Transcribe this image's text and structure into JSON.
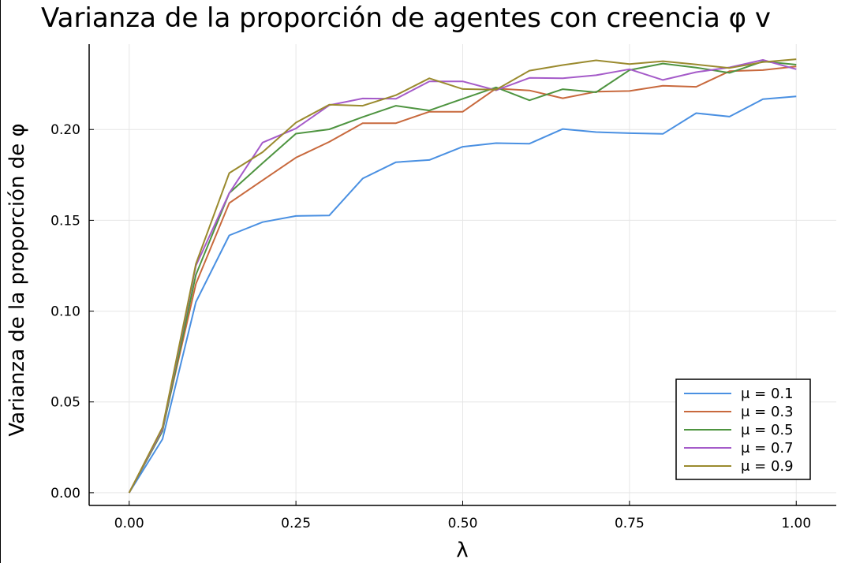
{
  "chart_data": {
    "type": "line",
    "title": "Varianza de la proporción de agentes con creencia φ v",
    "xlabel": "λ",
    "ylabel": "Varianza de la proporción de φ",
    "xlim": [
      -0.06,
      1.06
    ],
    "ylim": [
      -0.007,
      0.247
    ],
    "xticks": [
      0.0,
      0.25,
      0.5,
      0.75,
      1.0
    ],
    "xtick_labels": [
      "0.00",
      "0.25",
      "0.50",
      "0.75",
      "1.00"
    ],
    "yticks": [
      0.0,
      0.05,
      0.1,
      0.15,
      0.2
    ],
    "ytick_labels": [
      "0.00",
      "0.05",
      "0.10",
      "0.15",
      "0.20"
    ],
    "grid": true,
    "legend_position": "bottom-right",
    "x": [
      0.0,
      0.05,
      0.1,
      0.15,
      0.2,
      0.25,
      0.3,
      0.35,
      0.4,
      0.45,
      0.5,
      0.55,
      0.6,
      0.65,
      0.7,
      0.75,
      0.8,
      0.85,
      0.9,
      0.95,
      1.0
    ],
    "series": [
      {
        "name": "μ = 0.1",
        "color": "#4a90e2",
        "values": [
          0.0,
          0.0295,
          0.105,
          0.1417,
          0.149,
          0.1524,
          0.1527,
          0.173,
          0.182,
          0.1832,
          0.1905,
          0.1925,
          0.1922,
          0.2003,
          0.1986,
          0.198,
          0.1976,
          0.209,
          0.2071,
          0.2167,
          0.2182
        ]
      },
      {
        "name": "μ = 0.3",
        "color": "#c8693d",
        "values": [
          0.0,
          0.035,
          0.115,
          0.1595,
          0.172,
          0.1845,
          0.1932,
          0.2035,
          0.2035,
          0.2098,
          0.2098,
          0.2226,
          0.2215,
          0.2172,
          0.2208,
          0.2212,
          0.2241,
          0.2235,
          0.2321,
          0.2327,
          0.2347
        ]
      },
      {
        "name": "μ = 0.5",
        "color": "#4e9440",
        "values": [
          0.0,
          0.034,
          0.12,
          0.165,
          0.1815,
          0.1977,
          0.2001,
          0.2069,
          0.2131,
          0.2105,
          0.2169,
          0.2232,
          0.2161,
          0.2222,
          0.2205,
          0.2327,
          0.2363,
          0.2341,
          0.2312,
          0.2375,
          0.2357
        ]
      },
      {
        "name": "μ = 0.7",
        "color": "#a55bc9",
        "values": [
          0.0,
          0.035,
          0.125,
          0.165,
          0.1928,
          0.2006,
          0.2134,
          0.2171,
          0.2169,
          0.2265,
          0.2265,
          0.2216,
          0.2284,
          0.2282,
          0.2299,
          0.2332,
          0.2273,
          0.2316,
          0.2342,
          0.2383,
          0.2332
        ]
      },
      {
        "name": "μ = 0.9",
        "color": "#9a8a2e",
        "values": [
          0.0,
          0.036,
          0.126,
          0.176,
          0.1875,
          0.2038,
          0.2137,
          0.2131,
          0.2189,
          0.2282,
          0.2223,
          0.2219,
          0.2324,
          0.2355,
          0.2381,
          0.236,
          0.2376,
          0.2358,
          0.2339,
          0.2371,
          0.2387
        ]
      }
    ]
  }
}
